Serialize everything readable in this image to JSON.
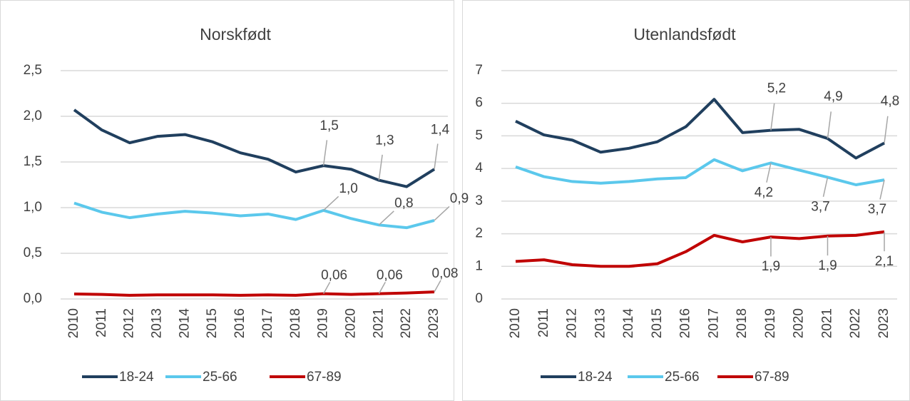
{
  "chart_data": [
    {
      "type": "line",
      "title": "Norskfødt",
      "categories": [
        "2010",
        "2011",
        "2012",
        "2013",
        "2014",
        "2015",
        "2016",
        "2017",
        "2018",
        "2019",
        "2020",
        "2021",
        "2022",
        "2023"
      ],
      "ylim": [
        0,
        2.5
      ],
      "yticks": [
        {
          "value": 0,
          "label": "0,0"
        },
        {
          "value": 0.5,
          "label": "0,5"
        },
        {
          "value": 1.0,
          "label": "1,0"
        },
        {
          "value": 1.5,
          "label": "1,5"
        },
        {
          "value": 2.0,
          "label": "2,0"
        },
        {
          "value": 2.5,
          "label": "2,5"
        }
      ],
      "grid": true,
      "series": [
        {
          "name": "18-24",
          "color": "#203f5e",
          "values": [
            2.07,
            1.85,
            1.71,
            1.78,
            1.8,
            1.72,
            1.6,
            1.53,
            1.39,
            1.46,
            1.42,
            1.3,
            1.23,
            1.42
          ],
          "value_labels": [
            null,
            null,
            null,
            null,
            null,
            null,
            null,
            null,
            null,
            "1,5",
            null,
            "1,3",
            null,
            "1,4"
          ]
        },
        {
          "name": "25-66",
          "color": "#5bc8ec",
          "values": [
            1.05,
            0.95,
            0.89,
            0.93,
            0.96,
            0.94,
            0.91,
            0.93,
            0.87,
            0.97,
            0.88,
            0.81,
            0.78,
            0.86
          ],
          "value_labels": [
            null,
            null,
            null,
            null,
            null,
            null,
            null,
            null,
            null,
            "1,0",
            null,
            "0,8",
            null,
            "0,9"
          ]
        },
        {
          "name": "67-89",
          "color": "#c00000",
          "values": [
            0.055,
            0.05,
            0.04,
            0.045,
            0.045,
            0.045,
            0.04,
            0.045,
            0.04,
            0.058,
            0.05,
            0.058,
            0.065,
            0.077
          ],
          "value_labels": [
            null,
            null,
            null,
            null,
            null,
            null,
            null,
            null,
            null,
            "0,06",
            null,
            "0,06",
            null,
            "0,08"
          ]
        }
      ]
    },
    {
      "type": "line",
      "title": "Utenlandsfødt",
      "categories": [
        "2010",
        "2011",
        "2012",
        "2013",
        "2014",
        "2015",
        "2016",
        "2017",
        "2018",
        "2019",
        "2020",
        "2021",
        "2022",
        "2023"
      ],
      "ylim": [
        0,
        7
      ],
      "yticks": [
        0,
        1,
        2,
        3,
        4,
        5,
        6,
        7
      ],
      "grid": true,
      "series": [
        {
          "name": "18-24",
          "color": "#203f5e",
          "values": [
            5.45,
            5.03,
            4.87,
            4.5,
            4.62,
            4.82,
            5.28,
            6.12,
            5.1,
            5.17,
            5.2,
            4.92,
            4.32,
            4.78
          ],
          "value_labels": [
            null,
            null,
            null,
            null,
            null,
            null,
            null,
            null,
            null,
            "5,2",
            null,
            "4,9",
            null,
            "4,8"
          ]
        },
        {
          "name": "25-66",
          "color": "#5bc8ec",
          "values": [
            4.05,
            3.75,
            3.6,
            3.55,
            3.6,
            3.68,
            3.72,
            4.27,
            3.93,
            4.17,
            3.95,
            3.73,
            3.5,
            3.65
          ],
          "value_labels": [
            null,
            null,
            null,
            null,
            null,
            null,
            null,
            null,
            null,
            "4,2",
            null,
            "3,7",
            null,
            "3,7"
          ]
        },
        {
          "name": "67-89",
          "color": "#c00000",
          "values": [
            1.15,
            1.2,
            1.05,
            1.0,
            1.0,
            1.08,
            1.45,
            1.95,
            1.75,
            1.9,
            1.85,
            1.93,
            1.95,
            2.06
          ],
          "value_labels": [
            null,
            null,
            null,
            null,
            null,
            null,
            null,
            null,
            null,
            "1,9",
            null,
            "1,9",
            null,
            "2,1"
          ]
        }
      ]
    }
  ]
}
